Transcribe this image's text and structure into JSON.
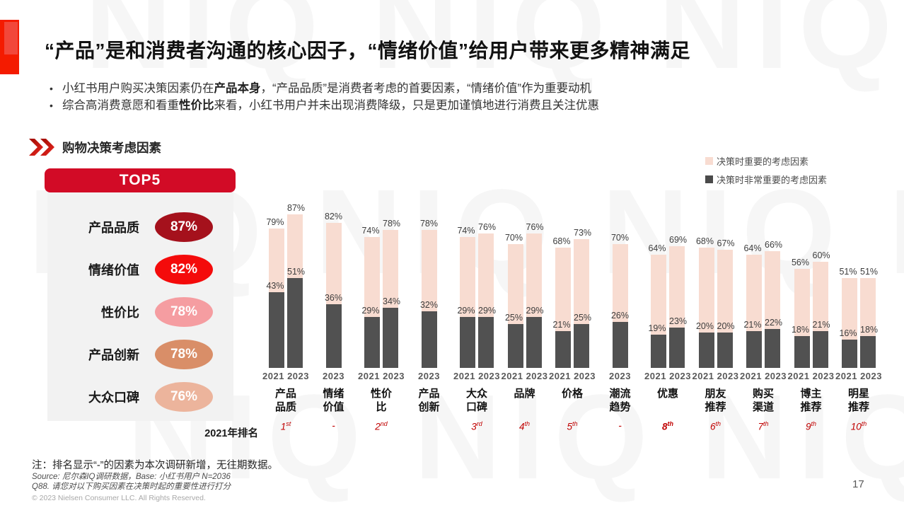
{
  "slide": {
    "title": "“产品”是和消费者沟通的核心因子，“情绪价值”给用户带来更多精神满足",
    "bullets": [
      {
        "pre": "小红书用户购买决策因素仍在",
        "bold": "产品本身",
        "post": "，“产品品质”是消费者考虑的首要因素，“情绪价值”作为重要动机"
      },
      {
        "pre": "综合高消费意愿和看重",
        "bold": "性价比",
        "post": "来看，小红书用户并未出现消费降级，只是更加谨慎地进行消费且关注优惠"
      }
    ],
    "section_title": "购物决策考虑因素",
    "page_number": "17",
    "accent_red": "#d20b26",
    "watermark_text": "NIQ NIQ NIQ NIQ"
  },
  "top5": {
    "header": "TOP5",
    "items": [
      {
        "label": "产品品质",
        "value": "87%",
        "color": "#a5111c"
      },
      {
        "label": "情绪价值",
        "value": "82%",
        "color": "#f40b0b"
      },
      {
        "label": "性价比",
        "value": "78%",
        "color": "#f59da1"
      },
      {
        "label": "产品创新",
        "value": "78%",
        "color": "#d98e68"
      },
      {
        "label": "大众口碑",
        "value": "76%",
        "color": "#ecb49c"
      }
    ]
  },
  "legend": [
    {
      "label": "决策时重要的考虑因素",
      "color": "#f8dcd1"
    },
    {
      "label": "决策时非常重要的考虑因素",
      "color": "#4a4a4a"
    }
  ],
  "chart_data": {
    "type": "bar",
    "title": "购物决策考虑因素",
    "unit": "%",
    "ylim": [
      0,
      100
    ],
    "grid": false,
    "legend_position": "top-right",
    "series_meta": {
      "important": {
        "name": "决策时重要的考虑因素",
        "color": "#f8dcd1"
      },
      "very_important": {
        "name": "决策时非常重要的考虑因素",
        "color": "#515151"
      }
    },
    "rank_row_label": "2021年排名",
    "groups": [
      {
        "category": [
          "产品",
          "品质"
        ],
        "rank": "1st",
        "rank_bold": false,
        "bars": [
          {
            "year": "2021",
            "important": 79,
            "very_important": 43
          },
          {
            "year": "2023",
            "important": 87,
            "very_important": 51
          }
        ]
      },
      {
        "category": [
          "情绪",
          "价值"
        ],
        "rank": "-",
        "rank_bold": false,
        "bars": [
          {
            "year": "2023",
            "important": 82,
            "very_important": 36
          }
        ]
      },
      {
        "category": [
          "性价",
          "比"
        ],
        "rank": "2nd",
        "rank_bold": false,
        "bars": [
          {
            "year": "2021",
            "important": 74,
            "very_important": 29
          },
          {
            "year": "2023",
            "important": 78,
            "very_important": 34
          }
        ]
      },
      {
        "category": [
          "产品",
          "创新"
        ],
        "rank": "",
        "rank_bold": false,
        "bars": [
          {
            "year": "2023",
            "important": 78,
            "very_important": 32
          }
        ]
      },
      {
        "category": [
          "大众",
          "口碑"
        ],
        "rank": "3rd",
        "rank_bold": false,
        "bars": [
          {
            "year": "2021",
            "important": 74,
            "very_important": 29
          },
          {
            "year": "2023",
            "important": 76,
            "very_important": 29
          }
        ]
      },
      {
        "category": [
          "品牌"
        ],
        "rank": "4th",
        "rank_bold": false,
        "bars": [
          {
            "year": "2021",
            "important": 70,
            "very_important": 25
          },
          {
            "year": "2023",
            "important": 76,
            "very_important": 29
          }
        ]
      },
      {
        "category": [
          "价格"
        ],
        "rank": "5th",
        "rank_bold": false,
        "bars": [
          {
            "year": "2021",
            "important": 68,
            "very_important": 21
          },
          {
            "year": "2023",
            "important": 73,
            "very_important": 25
          }
        ]
      },
      {
        "category": [
          "潮流",
          "趋势"
        ],
        "rank": "-",
        "rank_bold": false,
        "bars": [
          {
            "year": "2023",
            "important": 70,
            "very_important": 26
          }
        ]
      },
      {
        "category": [
          "优惠"
        ],
        "rank": "8th",
        "rank_bold": true,
        "bars": [
          {
            "year": "2021",
            "important": 64,
            "very_important": 19
          },
          {
            "year": "2023",
            "important": 69,
            "very_important": 23
          }
        ]
      },
      {
        "category": [
          "朋友",
          "推荐"
        ],
        "rank": "6th",
        "rank_bold": false,
        "bars": [
          {
            "year": "2021",
            "important": 68,
            "very_important": 20
          },
          {
            "year": "2023",
            "important": 67,
            "very_important": 20
          }
        ]
      },
      {
        "category": [
          "购买",
          "渠道"
        ],
        "rank": "7th",
        "rank_bold": false,
        "bars": [
          {
            "year": "2021",
            "important": 64,
            "very_important": 21
          },
          {
            "year": "2023",
            "important": 66,
            "very_important": 22
          }
        ]
      },
      {
        "category": [
          "博主",
          "推荐"
        ],
        "rank": "9th",
        "rank_bold": false,
        "bars": [
          {
            "year": "2021",
            "important": 56,
            "very_important": 18
          },
          {
            "year": "2023",
            "important": 60,
            "very_important": 21
          }
        ]
      },
      {
        "category": [
          "明星",
          "推荐"
        ],
        "rank": "10th",
        "rank_bold": false,
        "bars": [
          {
            "year": "2021",
            "important": 51,
            "very_important": 16
          },
          {
            "year": "2023",
            "important": 51,
            "very_important": 18
          }
        ]
      }
    ]
  },
  "footer": {
    "note": "注：排名显示“-”的因素为本次调研新增，无往期数据。",
    "source": "Source: 尼尔森IQ调研数据，Base: 小红书用户 N=2036",
    "question": "Q88. 请您对以下购买因素在决策时起的重要性进行打分",
    "copyright": "© 2023 Nielsen Consumer LLC. All Rights Reserved."
  }
}
